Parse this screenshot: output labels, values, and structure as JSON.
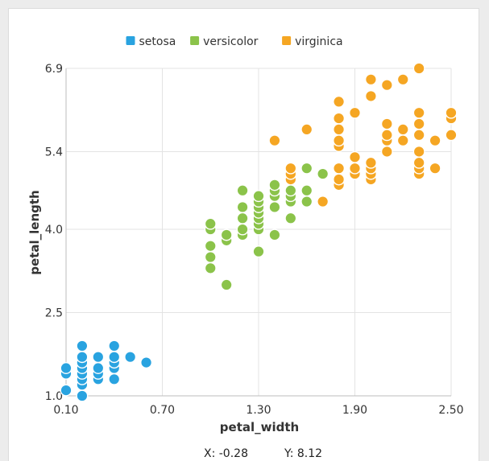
{
  "chart_data": {
    "type": "scatter",
    "xlabel": "petal_width",
    "ylabel": "petal_length",
    "xlim": [
      0.1,
      2.5
    ],
    "ylim": [
      1.0,
      6.9
    ],
    "x_ticks": [
      "0.10",
      "0.70",
      "1.30",
      "1.90",
      "2.50"
    ],
    "y_ticks": [
      "1.0",
      "2.5",
      "4.0",
      "5.4",
      "6.9"
    ],
    "grid": true,
    "legend_position": "top-center",
    "series": [
      {
        "name": "setosa",
        "color": "#29a3e0",
        "points": [
          [
            0.1,
            1.1
          ],
          [
            0.1,
            1.4
          ],
          [
            0.1,
            1.5
          ],
          [
            0.2,
            1.0
          ],
          [
            0.2,
            1.2
          ],
          [
            0.2,
            1.3
          ],
          [
            0.2,
            1.4
          ],
          [
            0.2,
            1.5
          ],
          [
            0.2,
            1.6
          ],
          [
            0.2,
            1.7
          ],
          [
            0.2,
            1.9
          ],
          [
            0.3,
            1.3
          ],
          [
            0.3,
            1.4
          ],
          [
            0.3,
            1.5
          ],
          [
            0.3,
            1.7
          ],
          [
            0.4,
            1.3
          ],
          [
            0.4,
            1.5
          ],
          [
            0.4,
            1.6
          ],
          [
            0.4,
            1.7
          ],
          [
            0.4,
            1.9
          ],
          [
            0.5,
            1.7
          ],
          [
            0.6,
            1.6
          ]
        ]
      },
      {
        "name": "versicolor",
        "color": "#8bc34a",
        "points": [
          [
            1.0,
            3.3
          ],
          [
            1.0,
            3.5
          ],
          [
            1.0,
            3.7
          ],
          [
            1.0,
            4.0
          ],
          [
            1.0,
            4.1
          ],
          [
            1.1,
            3.0
          ],
          [
            1.1,
            3.8
          ],
          [
            1.1,
            3.9
          ],
          [
            1.2,
            3.9
          ],
          [
            1.2,
            4.0
          ],
          [
            1.2,
            4.2
          ],
          [
            1.2,
            4.4
          ],
          [
            1.2,
            4.7
          ],
          [
            1.3,
            3.6
          ],
          [
            1.3,
            4.0
          ],
          [
            1.3,
            4.1
          ],
          [
            1.3,
            4.2
          ],
          [
            1.3,
            4.3
          ],
          [
            1.3,
            4.4
          ],
          [
            1.3,
            4.5
          ],
          [
            1.3,
            4.6
          ],
          [
            1.4,
            3.9
          ],
          [
            1.4,
            4.4
          ],
          [
            1.4,
            4.6
          ],
          [
            1.4,
            4.7
          ],
          [
            1.4,
            4.8
          ],
          [
            1.5,
            4.2
          ],
          [
            1.5,
            4.5
          ],
          [
            1.5,
            4.6
          ],
          [
            1.5,
            4.7
          ],
          [
            1.5,
            4.9
          ],
          [
            1.6,
            4.5
          ],
          [
            1.6,
            4.7
          ],
          [
            1.6,
            5.1
          ],
          [
            1.7,
            5.0
          ]
        ]
      },
      {
        "name": "virginica",
        "color": "#f5a623",
        "points": [
          [
            1.4,
            5.6
          ],
          [
            1.5,
            4.9
          ],
          [
            1.5,
            5.0
          ],
          [
            1.5,
            5.1
          ],
          [
            1.6,
            5.8
          ],
          [
            1.7,
            4.5
          ],
          [
            1.8,
            4.8
          ],
          [
            1.8,
            4.9
          ],
          [
            1.8,
            5.1
          ],
          [
            1.8,
            5.5
          ],
          [
            1.8,
            5.6
          ],
          [
            1.8,
            5.8
          ],
          [
            1.8,
            6.0
          ],
          [
            1.8,
            6.3
          ],
          [
            1.9,
            5.0
          ],
          [
            1.9,
            5.1
          ],
          [
            1.9,
            5.3
          ],
          [
            1.9,
            6.1
          ],
          [
            2.0,
            4.9
          ],
          [
            2.0,
            5.0
          ],
          [
            2.0,
            5.1
          ],
          [
            2.0,
            5.2
          ],
          [
            2.0,
            6.4
          ],
          [
            2.0,
            6.7
          ],
          [
            2.1,
            5.4
          ],
          [
            2.1,
            5.6
          ],
          [
            2.1,
            5.7
          ],
          [
            2.1,
            5.9
          ],
          [
            2.1,
            6.6
          ],
          [
            2.2,
            5.6
          ],
          [
            2.2,
            5.8
          ],
          [
            2.2,
            6.7
          ],
          [
            2.3,
            5.0
          ],
          [
            2.3,
            5.1
          ],
          [
            2.3,
            5.2
          ],
          [
            2.3,
            5.4
          ],
          [
            2.3,
            5.7
          ],
          [
            2.3,
            5.9
          ],
          [
            2.3,
            6.1
          ],
          [
            2.3,
            6.9
          ],
          [
            2.4,
            5.1
          ],
          [
            2.4,
            5.6
          ],
          [
            2.5,
            5.7
          ],
          [
            2.5,
            6.0
          ],
          [
            2.5,
            6.1
          ]
        ]
      }
    ]
  },
  "readout": {
    "x_text": "X: -0.28",
    "y_text": "Y: 8.12"
  }
}
